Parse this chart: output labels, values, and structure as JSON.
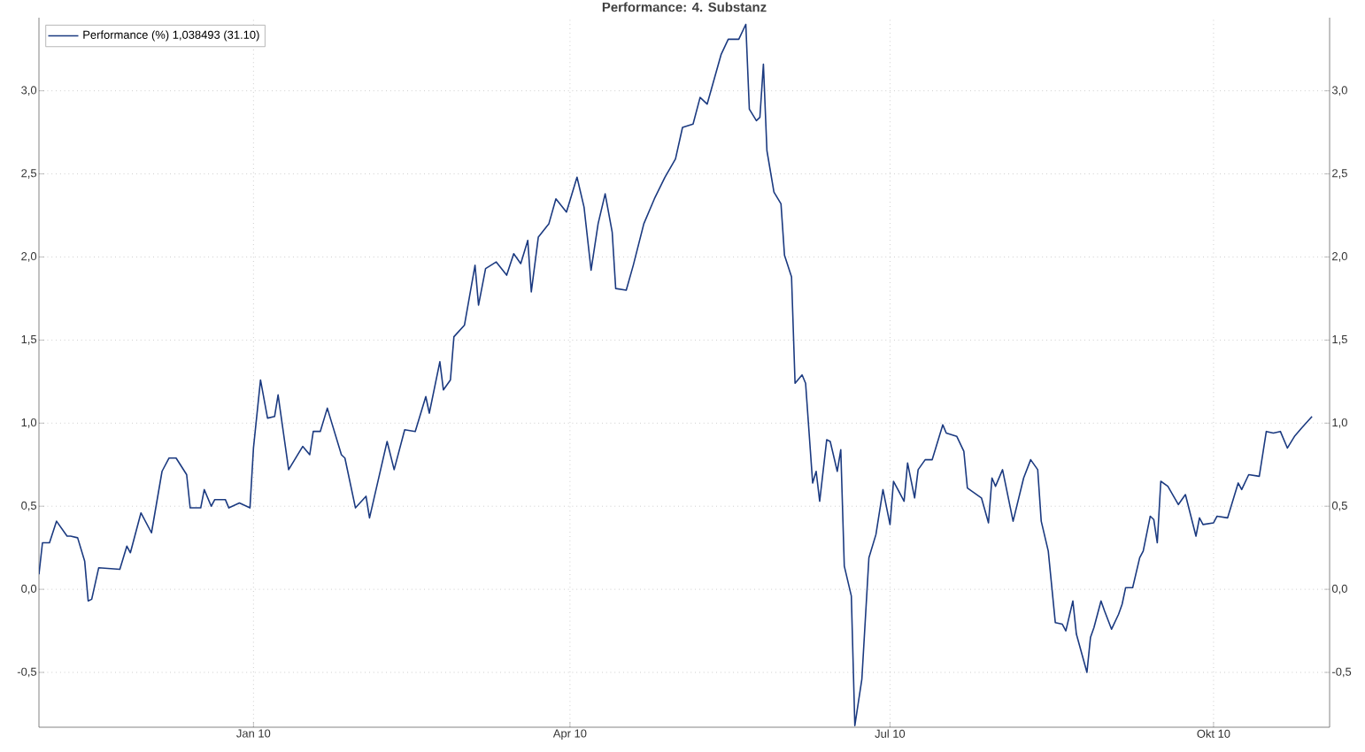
{
  "chart_data": {
    "type": "line",
    "title": "Performance: 4. Substanz",
    "x": [
      "2009-11-01",
      "2009-11-02",
      "2009-11-04",
      "2009-11-06",
      "2009-11-09",
      "2009-11-10",
      "2009-11-12",
      "2009-11-14",
      "2009-11-15",
      "2009-11-16",
      "2009-11-18",
      "2009-11-24",
      "2009-11-26",
      "2009-11-27",
      "2009-11-30",
      "2009-12-03",
      "2009-12-06",
      "2009-12-08",
      "2009-12-10",
      "2009-12-13",
      "2009-12-14",
      "2009-12-17",
      "2009-12-18",
      "2009-12-20",
      "2009-12-21",
      "2009-12-24",
      "2009-12-25",
      "2009-12-28",
      "2009-12-31",
      "2010-01-01",
      "2010-01-03",
      "2010-01-05",
      "2010-01-07",
      "2010-01-08",
      "2010-01-11",
      "2010-01-15",
      "2010-01-17",
      "2010-01-18",
      "2010-01-20",
      "2010-01-22",
      "2010-01-26",
      "2010-01-27",
      "2010-01-30",
      "2010-02-02",
      "2010-02-03",
      "2010-02-08",
      "2010-02-10",
      "2010-02-13",
      "2010-02-16",
      "2010-02-19",
      "2010-02-20",
      "2010-02-23",
      "2010-02-24",
      "2010-02-26",
      "2010-02-27",
      "2010-03-02",
      "2010-03-05",
      "2010-03-06",
      "2010-03-08",
      "2010-03-11",
      "2010-03-14",
      "2010-03-16",
      "2010-03-18",
      "2010-03-20",
      "2010-03-21",
      "2010-03-23",
      "2010-03-26",
      "2010-03-28",
      "2010-03-31",
      "2010-04-03",
      "2010-04-05",
      "2010-04-07",
      "2010-04-09",
      "2010-04-11",
      "2010-04-13",
      "2010-04-14",
      "2010-04-17",
      "2010-04-19",
      "2010-04-22",
      "2010-04-25",
      "2010-04-28",
      "2010-05-01",
      "2010-05-03",
      "2010-05-06",
      "2010-05-08",
      "2010-05-10",
      "2010-05-14",
      "2010-05-16",
      "2010-05-19",
      "2010-05-21",
      "2010-05-22",
      "2010-05-24",
      "2010-05-25",
      "2010-05-26",
      "2010-05-27",
      "2010-05-29",
      "2010-05-31",
      "2010-06-01",
      "2010-06-03",
      "2010-06-04",
      "2010-06-06",
      "2010-06-07",
      "2010-06-09",
      "2010-06-10",
      "2010-06-11",
      "2010-06-13",
      "2010-06-14",
      "2010-06-16",
      "2010-06-17",
      "2010-06-18",
      "2010-06-20",
      "2010-06-21",
      "2010-06-23",
      "2010-06-25",
      "2010-06-27",
      "2010-06-29",
      "2010-07-01",
      "2010-07-02",
      "2010-07-05",
      "2010-07-06",
      "2010-07-08",
      "2010-07-09",
      "2010-07-11",
      "2010-07-13",
      "2010-07-16",
      "2010-07-17",
      "2010-07-20",
      "2010-07-22",
      "2010-07-23",
      "2010-07-27",
      "2010-07-29",
      "2010-07-30",
      "2010-07-31",
      "2010-08-02",
      "2010-08-05",
      "2010-08-08",
      "2010-08-10",
      "2010-08-12",
      "2010-08-13",
      "2010-08-15",
      "2010-08-17",
      "2010-08-19",
      "2010-08-20",
      "2010-08-22",
      "2010-08-23",
      "2010-08-26",
      "2010-08-27",
      "2010-08-28",
      "2010-08-30",
      "2010-08-31",
      "2010-09-02",
      "2010-09-04",
      "2010-09-05",
      "2010-09-06",
      "2010-09-08",
      "2010-09-10",
      "2010-09-11",
      "2010-09-13",
      "2010-09-14",
      "2010-09-15",
      "2010-09-16",
      "2010-09-18",
      "2010-09-21",
      "2010-09-23",
      "2010-09-26",
      "2010-09-27",
      "2010-09-28",
      "2010-10-01",
      "2010-10-02",
      "2010-10-05",
      "2010-10-08",
      "2010-10-09",
      "2010-10-11",
      "2010-10-14",
      "2010-10-16",
      "2010-10-18",
      "2010-10-20",
      "2010-10-22",
      "2010-10-24",
      "2010-10-26",
      "2010-10-29"
    ],
    "series": [
      {
        "name": "Performance (%) 1,038493 (31.10)",
        "color": "#1b3a80",
        "values": [
          0.09,
          0.28,
          0.28,
          0.41,
          0.32,
          0.32,
          0.31,
          0.17,
          -0.07,
          -0.06,
          0.13,
          0.12,
          0.26,
          0.22,
          0.46,
          0.34,
          0.71,
          0.79,
          0.79,
          0.69,
          0.49,
          0.49,
          0.6,
          0.5,
          0.54,
          0.54,
          0.49,
          0.52,
          0.49,
          0.85,
          1.26,
          1.03,
          1.04,
          1.17,
          0.72,
          0.86,
          0.81,
          0.95,
          0.95,
          1.09,
          0.81,
          0.79,
          0.49,
          0.56,
          0.43,
          0.89,
          0.72,
          0.96,
          0.95,
          1.16,
          1.06,
          1.37,
          1.2,
          1.26,
          1.52,
          1.59,
          1.95,
          1.71,
          1.93,
          1.97,
          1.89,
          2.02,
          1.96,
          2.1,
          1.79,
          2.12,
          2.2,
          2.35,
          2.27,
          2.48,
          2.3,
          1.92,
          2.2,
          2.38,
          2.15,
          1.81,
          1.8,
          1.95,
          2.2,
          2.35,
          2.48,
          2.59,
          2.78,
          2.8,
          2.96,
          2.92,
          3.22,
          3.31,
          3.31,
          3.4,
          2.89,
          2.82,
          2.84,
          3.16,
          2.64,
          2.39,
          2.32,
          2.01,
          1.88,
          1.24,
          1.29,
          1.24,
          0.64,
          0.71,
          0.53,
          0.9,
          0.89,
          0.71,
          0.84,
          0.14,
          -0.04,
          -0.82,
          -0.54,
          0.19,
          0.33,
          0.6,
          0.39,
          0.65,
          0.53,
          0.76,
          0.55,
          0.72,
          0.78,
          0.78,
          0.99,
          0.94,
          0.92,
          0.83,
          0.61,
          0.55,
          0.4,
          0.67,
          0.62,
          0.72,
          0.41,
          0.67,
          0.78,
          0.72,
          0.41,
          0.23,
          -0.2,
          -0.21,
          -0.25,
          -0.07,
          -0.27,
          -0.5,
          -0.29,
          -0.23,
          -0.07,
          -0.13,
          -0.24,
          -0.15,
          -0.09,
          0.01,
          0.01,
          0.19,
          0.23,
          0.44,
          0.42,
          0.28,
          0.65,
          0.62,
          0.51,
          0.57,
          0.32,
          0.43,
          0.39,
          0.4,
          0.44,
          0.43,
          0.64,
          0.6,
          0.69,
          0.68,
          0.95,
          0.94,
          0.95,
          0.85,
          0.92,
          0.97,
          1.04
        ]
      }
    ],
    "xlim": [
      "2009-11-01",
      "2010-11-03"
    ],
    "xticks": [
      {
        "value": "2010-01-01",
        "label": "Jan 10"
      },
      {
        "value": "2010-04-01",
        "label": "Apr 10"
      },
      {
        "value": "2010-07-01",
        "label": "Jul 10"
      },
      {
        "value": "2010-10-01",
        "label": "Okt 10"
      }
    ],
    "ylim": [
      -0.83,
      3.44
    ],
    "yticks": [
      {
        "value": -0.5,
        "label": "-0,5"
      },
      {
        "value": 0,
        "label": "0,0"
      },
      {
        "value": 0.5,
        "label": "0,5"
      },
      {
        "value": 1,
        "label": "1,0"
      },
      {
        "value": 1.5,
        "label": "1,5"
      },
      {
        "value": 2,
        "label": "2,0"
      },
      {
        "value": 2.5,
        "label": "2,5"
      },
      {
        "value": 3,
        "label": "3,0"
      }
    ],
    "y2lim": [
      -0.83,
      3.44
    ],
    "y2ticks": [
      {
        "value": -0.5,
        "label": "-0,5"
      },
      {
        "value": 0,
        "label": "0,0"
      },
      {
        "value": 0.5,
        "label": "0,5"
      },
      {
        "value": 1,
        "label": "1,0"
      },
      {
        "value": 1.5,
        "label": "1,5"
      },
      {
        "value": 2,
        "label": "2,0"
      },
      {
        "value": 2.5,
        "label": "2,5"
      },
      {
        "value": 3,
        "label": "3,0"
      }
    ],
    "grid": true,
    "legend": "top left",
    "marker": "none",
    "line_style": "solid"
  }
}
